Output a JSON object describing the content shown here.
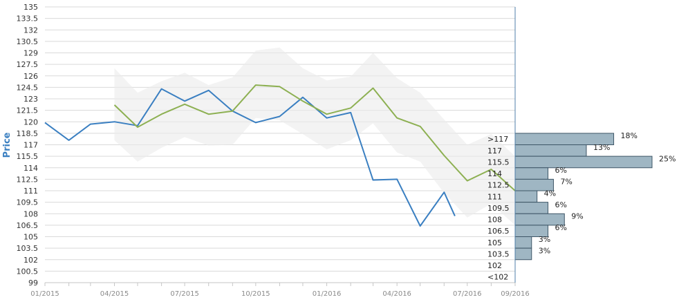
{
  "chart_data": {
    "type": "line",
    "xlabel": "",
    "ylabel": "Price",
    "ylim": [
      99,
      135
    ],
    "y_ticks": [
      99,
      100.5,
      102,
      103.5,
      105,
      106.5,
      108,
      109.5,
      111,
      112.5,
      114,
      115.5,
      117,
      118.5,
      120,
      121.5,
      123,
      124.5,
      126,
      127.5,
      129,
      130.5,
      132,
      133.5,
      135
    ],
    "x_ticks": [
      "01/2015",
      "04/2015",
      "07/2015",
      "10/2015",
      "01/2016",
      "04/2016",
      "07/2016",
      "09/2016"
    ],
    "series": [
      {
        "color": "#3a7fc1",
        "points": [
          [
            "2015-01-01",
            119.9
          ],
          [
            "2015-02-01",
            117.6
          ],
          [
            "2015-03-01",
            119.7
          ],
          [
            "2015-04-01",
            120.0
          ],
          [
            "2015-05-01",
            119.5
          ],
          [
            "2015-06-01",
            124.3
          ],
          [
            "2015-07-01",
            122.7
          ],
          [
            "2015-08-01",
            124.1
          ],
          [
            "2015-09-01",
            121.4
          ],
          [
            "2015-10-01",
            119.9
          ],
          [
            "2015-11-01",
            120.7
          ],
          [
            "2015-12-01",
            123.2
          ],
          [
            "2016-01-01",
            120.5
          ],
          [
            "2016-02-01",
            121.2
          ],
          [
            "2016-03-01",
            112.4
          ],
          [
            "2016-04-01",
            112.5
          ],
          [
            "2016-05-01",
            106.4
          ],
          [
            "2016-06-01",
            110.8
          ],
          [
            "2016-06-15",
            107.7
          ]
        ]
      },
      {
        "color": "#8db052",
        "points": [
          [
            "2015-04-01",
            122.2
          ],
          [
            "2015-05-01",
            119.3
          ],
          [
            "2015-06-01",
            121.0
          ],
          [
            "2015-07-01",
            122.3
          ],
          [
            "2015-08-01",
            121.0
          ],
          [
            "2015-09-01",
            121.4
          ],
          [
            "2015-10-01",
            124.8
          ],
          [
            "2015-11-01",
            124.6
          ],
          [
            "2015-12-01",
            122.7
          ],
          [
            "2016-01-01",
            121.0
          ],
          [
            "2016-02-01",
            121.8
          ],
          [
            "2016-03-01",
            124.4
          ],
          [
            "2016-04-01",
            120.5
          ],
          [
            "2016-05-01",
            119.4
          ],
          [
            "2016-06-01",
            115.6
          ],
          [
            "2016-07-01",
            112.3
          ],
          [
            "2016-08-01",
            113.8
          ],
          [
            "2016-09-01",
            111.0
          ],
          [
            "2016-09-10",
            112.6
          ]
        ]
      }
    ],
    "band": {
      "color": "#ebebeb",
      "upper": [
        [
          "2015-04-01",
          127.0
        ],
        [
          "2015-05-01",
          123.8
        ],
        [
          "2015-06-01",
          125.3
        ],
        [
          "2015-07-01",
          126.4
        ],
        [
          "2015-08-01",
          124.8
        ],
        [
          "2015-09-01",
          125.8
        ],
        [
          "2015-10-01",
          129.3
        ],
        [
          "2015-11-01",
          129.7
        ],
        [
          "2015-12-01",
          127.0
        ],
        [
          "2016-01-01",
          125.4
        ],
        [
          "2016-02-01",
          125.9
        ],
        [
          "2016-03-01",
          129.0
        ],
        [
          "2016-04-01",
          125.7
        ],
        [
          "2016-05-01",
          123.8
        ],
        [
          "2016-06-01",
          120.3
        ],
        [
          "2016-07-01",
          117.0
        ],
        [
          "2016-08-01",
          118.4
        ],
        [
          "2016-09-01",
          115.5
        ],
        [
          "2016-09-10",
          117.0
        ]
      ],
      "lower": [
        [
          "2015-04-01",
          117.6
        ],
        [
          "2015-05-01",
          114.8
        ],
        [
          "2015-06-01",
          116.6
        ],
        [
          "2015-07-01",
          118.0
        ],
        [
          "2015-08-01",
          116.9
        ],
        [
          "2015-09-01",
          117.0
        ],
        [
          "2015-10-01",
          120.5
        ],
        [
          "2015-11-01",
          120.2
        ],
        [
          "2015-12-01",
          118.4
        ],
        [
          "2016-01-01",
          116.4
        ],
        [
          "2016-02-01",
          117.6
        ],
        [
          "2016-03-01",
          119.8
        ],
        [
          "2016-04-01",
          116.0
        ],
        [
          "2016-05-01",
          114.8
        ],
        [
          "2016-06-01",
          110.7
        ],
        [
          "2016-07-01",
          107.5
        ],
        [
          "2016-08-01",
          109.3
        ],
        [
          "2016-09-01",
          106.5
        ],
        [
          "2016-09-10",
          108.2
        ]
      ]
    },
    "histogram": {
      "color": "#9fb6c3",
      "bins": [
        {
          "label": ">117",
          "value": 18,
          "text": "18%"
        },
        {
          "label": "117",
          "value": 13,
          "text": "13%"
        },
        {
          "label": "115.5",
          "value": 25,
          "text": "25%"
        },
        {
          "label": "114",
          "value": 6,
          "text": "6%"
        },
        {
          "label": "112.5",
          "value": 7,
          "text": "7%"
        },
        {
          "label": "111",
          "value": 4,
          "text": "4%"
        },
        {
          "label": "109.5",
          "value": 6,
          "text": "6%"
        },
        {
          "label": "108",
          "value": 9,
          "text": "9%"
        },
        {
          "label": "106.5",
          "value": 6,
          "text": "6%"
        },
        {
          "label": "105",
          "value": 3,
          "text": "3%"
        },
        {
          "label": "103.5",
          "value": 3,
          "text": "3%"
        },
        {
          "label": "102",
          "value": 0,
          "text": ""
        },
        {
          "label": "<102",
          "value": 0,
          "text": ""
        }
      ]
    },
    "grid": true,
    "legend": "none"
  }
}
